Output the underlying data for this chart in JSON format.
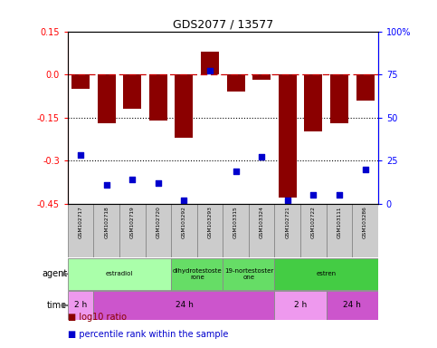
{
  "title": "GDS2077 / 13577",
  "samples": [
    "GSM102717",
    "GSM102718",
    "GSM102719",
    "GSM102720",
    "GSM103292",
    "GSM103293",
    "GSM103315",
    "GSM103324",
    "GSM102721",
    "GSM102722",
    "GSM103111",
    "GSM103286"
  ],
  "log10_ratio": [
    -0.05,
    -0.17,
    -0.12,
    -0.16,
    -0.22,
    0.08,
    -0.06,
    -0.02,
    -0.43,
    -0.2,
    -0.17,
    -0.09
  ],
  "percentile_rank": [
    28,
    11,
    14,
    12,
    2,
    77,
    19,
    27,
    2,
    5,
    5,
    20
  ],
  "ylim": [
    -0.45,
    0.15
  ],
  "yticks_left": [
    -0.45,
    -0.3,
    -0.15,
    0.0,
    0.15
  ],
  "yticks_right": [
    0,
    25,
    50,
    75,
    100
  ],
  "dotted_lines": [
    -0.15,
    -0.3
  ],
  "bar_color": "#8B0000",
  "dot_color": "#0000CD",
  "dashed_line_color": "#CC0000",
  "agent_groups": [
    {
      "label": "estradiol",
      "start": 0,
      "end": 4,
      "color": "#AAFFAA"
    },
    {
      "label": "dihydrotestoste\nrone",
      "start": 4,
      "end": 6,
      "color": "#66DD66"
    },
    {
      "label": "19-nortestoster\none",
      "start": 6,
      "end": 8,
      "color": "#66DD66"
    },
    {
      "label": "estren",
      "start": 8,
      "end": 12,
      "color": "#44CC44"
    }
  ],
  "time_groups": [
    {
      "label": "2 h",
      "start": 0,
      "end": 1,
      "color": "#EE99EE"
    },
    {
      "label": "24 h",
      "start": 1,
      "end": 8,
      "color": "#CC55CC"
    },
    {
      "label": "2 h",
      "start": 8,
      "end": 10,
      "color": "#EE99EE"
    },
    {
      "label": "24 h",
      "start": 10,
      "end": 12,
      "color": "#CC55CC"
    }
  ],
  "sample_box_color": "#CCCCCC",
  "bg_color": "#FFFFFF"
}
